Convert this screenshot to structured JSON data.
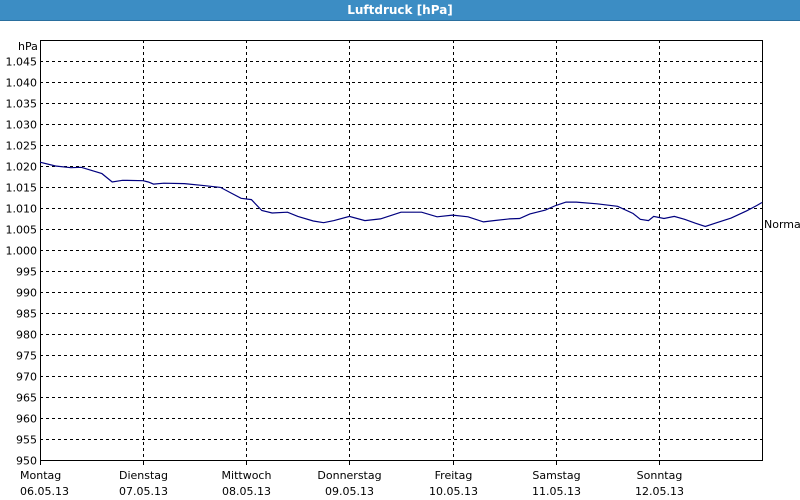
{
  "window": {
    "title": "Luftdruck [hPa]"
  },
  "chart_data": {
    "type": "line",
    "title": "Luftdruck [hPa]",
    "ylabel": "hPa",
    "xlabel": "",
    "ylim": [
      950,
      1050
    ],
    "yticks": [
      950,
      955,
      960,
      965,
      970,
      975,
      980,
      985,
      990,
      995,
      1000,
      1005,
      1010,
      1015,
      1020,
      1025,
      1030,
      1035,
      1040,
      1045
    ],
    "ytick_labels": [
      "950",
      "955",
      "960",
      "965",
      "970",
      "975",
      "980",
      "985",
      "990",
      "995",
      "1.000",
      "1.005",
      "1.010",
      "1.015",
      "1.020",
      "1.025",
      "1.030",
      "1.035",
      "1.040",
      "1.045"
    ],
    "xlim": [
      0,
      7
    ],
    "xticks": [
      {
        "day": "Montag",
        "date": "06.05.13"
      },
      {
        "day": "Dienstag",
        "date": "07.05.13"
      },
      {
        "day": "Mittwoch",
        "date": "08.05.13"
      },
      {
        "day": "Donnerstag",
        "date": "09.05.13"
      },
      {
        "day": "Freitag",
        "date": "10.05.13"
      },
      {
        "day": "Samstag",
        "date": "11.05.13"
      },
      {
        "day": "Sonntag",
        "date": "12.05.13"
      }
    ],
    "grid": true,
    "reference_line": {
      "label": "Normal",
      "value": 1005
    },
    "series": [
      {
        "color": "#00007f",
        "x": [
          0,
          0.15,
          0.3,
          0.4,
          0.6,
          0.7,
          0.8,
          1.0,
          1.05,
          1.1,
          1.2,
          1.4,
          1.6,
          1.75,
          1.85,
          1.95,
          2.05,
          2.15,
          2.25,
          2.4,
          2.5,
          2.65,
          2.75,
          2.85,
          3.0,
          3.15,
          3.3,
          3.5,
          3.7,
          3.85,
          4.0,
          4.15,
          4.3,
          4.4,
          4.55,
          4.65,
          4.75,
          4.9,
          5.0,
          5.1,
          5.2,
          5.4,
          5.6,
          5.75,
          5.82,
          5.9,
          5.95,
          6.05,
          6.15,
          6.25,
          6.35,
          6.45,
          6.55,
          6.7,
          6.85,
          6.95,
          7.0
        ],
        "y": [
          1020.9,
          1020.0,
          1019.6,
          1019.7,
          1018.2,
          1016.2,
          1016.6,
          1016.5,
          1016.2,
          1015.7,
          1015.9,
          1015.8,
          1015.3,
          1014.9,
          1013.6,
          1012.3,
          1012.0,
          1009.4,
          1008.8,
          1009.0,
          1008.0,
          1006.9,
          1006.5,
          1007.0,
          1008.0,
          1007.0,
          1007.4,
          1009.0,
          1009.0,
          1007.9,
          1008.3,
          1007.9,
          1006.7,
          1007.0,
          1007.4,
          1007.5,
          1008.6,
          1009.5,
          1010.6,
          1011.4,
          1011.4,
          1011.0,
          1010.4,
          1008.7,
          1007.3,
          1007.0,
          1008.0,
          1007.5,
          1008.0,
          1007.3,
          1006.4,
          1005.6,
          1006.4,
          1007.6,
          1009.3,
          1010.6,
          1011.3
        ]
      }
    ]
  }
}
